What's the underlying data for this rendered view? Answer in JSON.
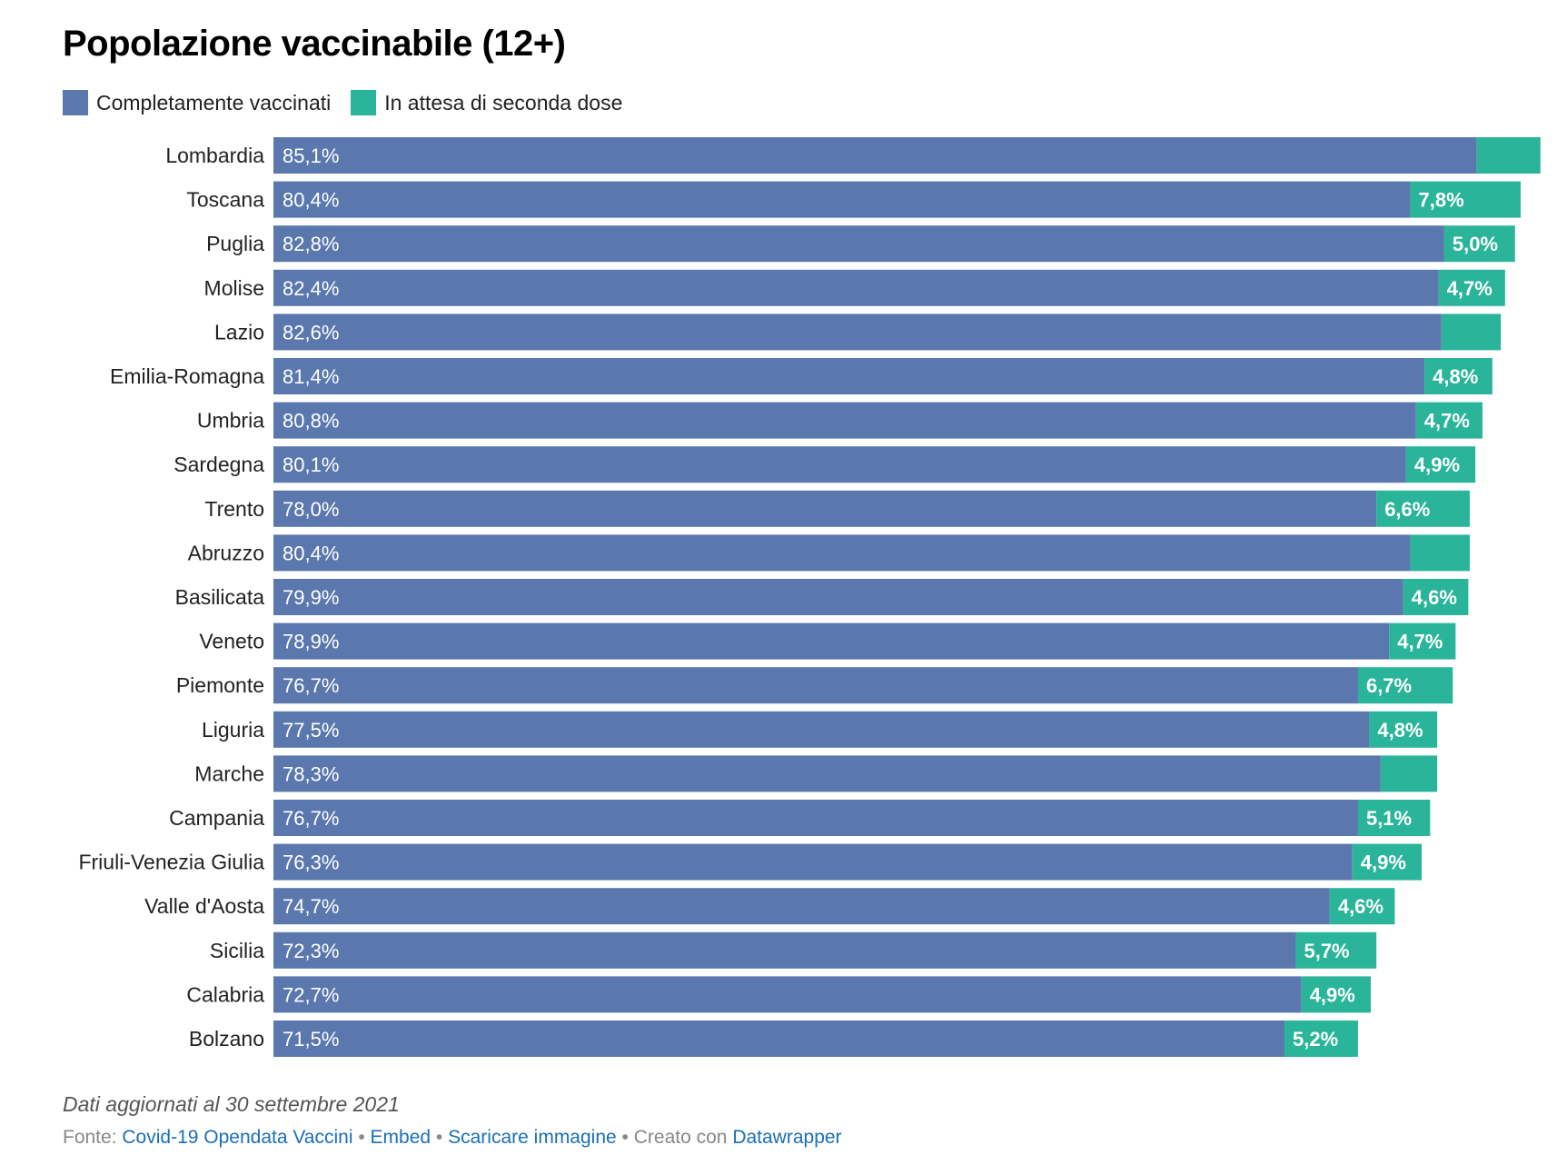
{
  "title": "Popolazione vaccinabile (12+)",
  "legend": [
    {
      "label": "Completamente vaccinati",
      "color": "#5a78ad"
    },
    {
      "label": "In attesa di seconda dose",
      "color": "#2ab59a"
    }
  ],
  "chart_data": {
    "type": "bar",
    "orientation": "horizontal",
    "stacked": true,
    "title": "Popolazione vaccinabile (12+)",
    "categories": [
      "Lombardia",
      "Toscana",
      "Puglia",
      "Molise",
      "Lazio",
      "Emilia-Romagna",
      "Umbria",
      "Sardegna",
      "Trento",
      "Abruzzo",
      "Basilicata",
      "Veneto",
      "Piemonte",
      "Liguria",
      "Marche",
      "Campania",
      "Friuli-Venezia Giulia",
      "Valle d'Aosta",
      "Sicilia",
      "Calabria",
      "Bolzano"
    ],
    "series": [
      {
        "name": "Completamente vaccinati",
        "color": "#5a78ad",
        "values": [
          85.1,
          80.4,
          82.8,
          82.4,
          82.6,
          81.4,
          80.8,
          80.1,
          78.0,
          80.4,
          79.9,
          78.9,
          76.7,
          77.5,
          78.3,
          76.7,
          76.3,
          74.7,
          72.3,
          72.7,
          71.5
        ],
        "labels": [
          "85,1%",
          "80,4%",
          "82,8%",
          "82,4%",
          "82,6%",
          "81,4%",
          "80,8%",
          "80,1%",
          "78,0%",
          "80,4%",
          "79,9%",
          "78,9%",
          "76,7%",
          "77,5%",
          "78,3%",
          "76,7%",
          "76,3%",
          "74,7%",
          "72,3%",
          "72,7%",
          "71,5%"
        ]
      },
      {
        "name": "In attesa di seconda dose",
        "color": "#2ab59a",
        "values": [
          4.5,
          7.8,
          5.0,
          4.7,
          4.2,
          4.8,
          4.7,
          4.9,
          6.6,
          4.2,
          4.6,
          4.7,
          6.7,
          4.8,
          4.0,
          5.1,
          4.9,
          4.6,
          5.7,
          4.9,
          5.2
        ],
        "labels": [
          "",
          "7,8%",
          "5,0%",
          "4,7%",
          "",
          "4,8%",
          "4,7%",
          "4,9%",
          "6,6%",
          "",
          "4,6%",
          "4,7%",
          "6,7%",
          "4,8%",
          "",
          "5,1%",
          "4,9%",
          "4,6%",
          "5,7%",
          "4,9%",
          "5,2%"
        ]
      }
    ],
    "xlim": [
      0,
      90
    ]
  },
  "footer": {
    "note": "Dati aggiornati al 30 settembre 2021",
    "source_prefix": "Fonte:",
    "source_link": "Covid-19 Opendata Vaccini",
    "separator": "•",
    "embed": "Embed",
    "download": "Scaricare immagine",
    "created_with": "Creato con",
    "tool": "Datawrapper"
  }
}
